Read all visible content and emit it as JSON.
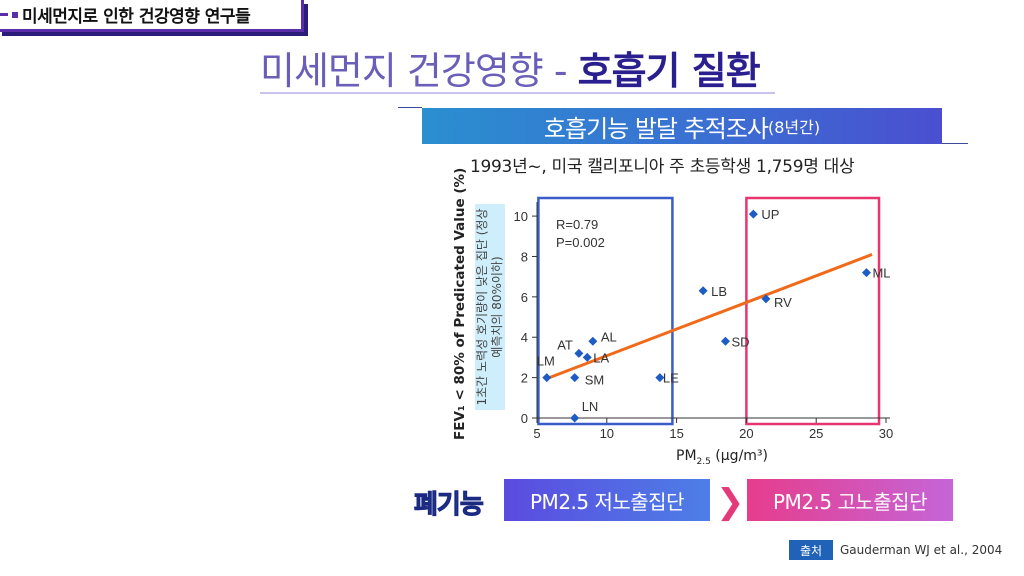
{
  "header": {
    "corner_tag": "미세먼지로 인한 건강영향 연구들",
    "title_light": "미세먼지 건강영향 - ",
    "title_bold": "호흡기 질환",
    "subtitle_main": "호흡기능 발달 추적조사",
    "subtitle_paren": "(8년간)",
    "study_info": "1993년~, 미국 캘리포니아 주 초등학생 1,759명 대상"
  },
  "chart_data": {
    "type": "scatter",
    "ylabel": "FEV₁ < 80% of Predicated Value (%)",
    "ylabel_secondary": "1초간 노력성 호기량이 낮은 집단 (정상예측치의 80%이하)",
    "xlabel": "PM",
    "xlabel_sub": "2.5",
    "xlabel_unit": " (μg/m³)",
    "xlim": [
      5,
      30
    ],
    "ylim": [
      0,
      10.5
    ],
    "xticks": [
      5,
      10,
      15,
      20,
      25,
      30
    ],
    "yticks": [
      0,
      2,
      4,
      6,
      8,
      10
    ],
    "points": [
      {
        "label": "LM",
        "x": 5.7,
        "y": 2.0
      },
      {
        "label": "SM",
        "x": 7.7,
        "y": 2.0
      },
      {
        "label": "LN",
        "x": 7.7,
        "y": 0.0
      },
      {
        "label": "AT",
        "x": 8.0,
        "y": 3.2
      },
      {
        "label": "LA",
        "x": 8.6,
        "y": 3.0
      },
      {
        "label": "AL",
        "x": 9.0,
        "y": 3.8
      },
      {
        "label": "LE",
        "x": 13.8,
        "y": 2.0
      },
      {
        "label": "LB",
        "x": 16.9,
        "y": 6.3
      },
      {
        "label": "SD",
        "x": 18.5,
        "y": 3.8
      },
      {
        "label": "UP",
        "x": 20.5,
        "y": 10.1
      },
      {
        "label": "RV",
        "x": 21.4,
        "y": 5.9
      },
      {
        "label": "ML",
        "x": 28.6,
        "y": 7.2
      }
    ],
    "trendline": {
      "x1": 5.7,
      "y1": 1.95,
      "x2": 29.0,
      "y2": 8.1,
      "color": "#f06a1a"
    },
    "stats": {
      "r": "R=0.79",
      "p": "P=0.002"
    },
    "point_color": "#1d5cc4",
    "low_group_color": "#3a5cc8",
    "high_group_color": "#e8356f"
  },
  "footer": {
    "lung_label": "폐기능",
    "low_group": "PM2.5 저노출집단",
    "arrow": "❯",
    "high_group": "PM2.5 고노출집단",
    "source_badge": "출처",
    "source_text": "Gauderman WJ et al., 2004"
  }
}
